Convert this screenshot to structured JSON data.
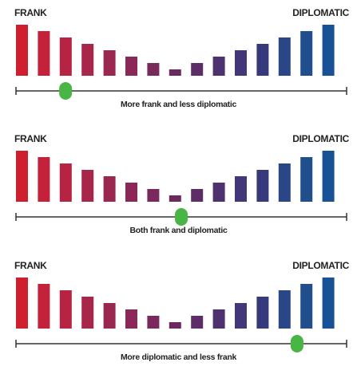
{
  "scale": {
    "left_label": "FRANK",
    "right_label": "DIPLOMATIC",
    "bar_levels": [
      1.0,
      0.875,
      0.75,
      0.625,
      0.5,
      0.375,
      0.25,
      0.125,
      0.25,
      0.375,
      0.5,
      0.625,
      0.75,
      0.875,
      1.0
    ],
    "bar_colors": [
      "#cf1f2e",
      "#c3223a",
      "#b72342",
      "#a7264a",
      "#9a2750",
      "#8c2857",
      "#7a295c",
      "#6a2a5f",
      "#5d2d67",
      "#4e316f",
      "#433679",
      "#363a7d",
      "#2a4686",
      "#214f8e",
      "#175296"
    ],
    "slider_color": "#49b545"
  },
  "panels": [
    {
      "caption": "More frank and less diplomatic",
      "slider_value": 0.15
    },
    {
      "caption": "Both frank and diplomatic",
      "slider_value": 0.5
    },
    {
      "caption": "More diplomatic and less frank",
      "slider_value": 0.85
    }
  ]
}
